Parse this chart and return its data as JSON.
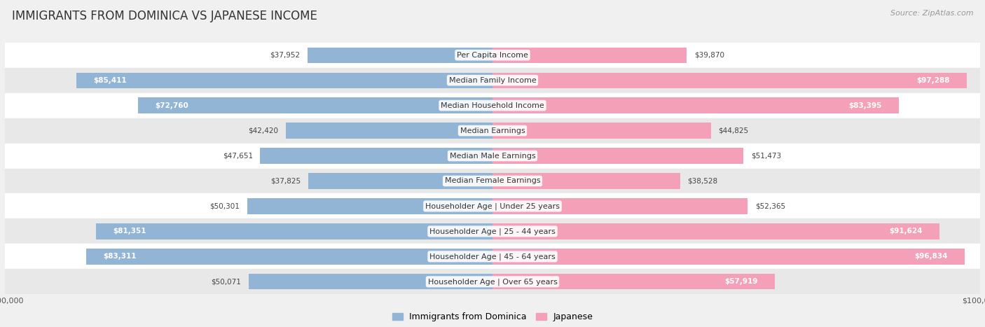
{
  "title": "IMMIGRANTS FROM DOMINICA VS JAPANESE INCOME",
  "source": "Source: ZipAtlas.com",
  "categories": [
    "Per Capita Income",
    "Median Family Income",
    "Median Household Income",
    "Median Earnings",
    "Median Male Earnings",
    "Median Female Earnings",
    "Householder Age | Under 25 years",
    "Householder Age | 25 - 44 years",
    "Householder Age | 45 - 64 years",
    "Householder Age | Over 65 years"
  ],
  "dominica_values": [
    37952,
    85411,
    72760,
    42420,
    47651,
    37825,
    50301,
    81351,
    83311,
    50071
  ],
  "japanese_values": [
    39870,
    97288,
    83395,
    44825,
    51473,
    38528,
    52365,
    91624,
    96834,
    57919
  ],
  "dominica_color": "#93b5d5",
  "japanese_color": "#f4a0b8",
  "dominica_label": "Immigrants from Dominica",
  "japanese_label": "Japanese",
  "axis_limit": 100000,
  "bar_height": 0.62,
  "title_fontsize": 12,
  "label_fontsize": 8,
  "value_fontsize": 7.5,
  "legend_fontsize": 9,
  "source_fontsize": 8,
  "inside_threshold": 55000,
  "row_colors": [
    "#ffffff",
    "#e8e8e8"
  ]
}
